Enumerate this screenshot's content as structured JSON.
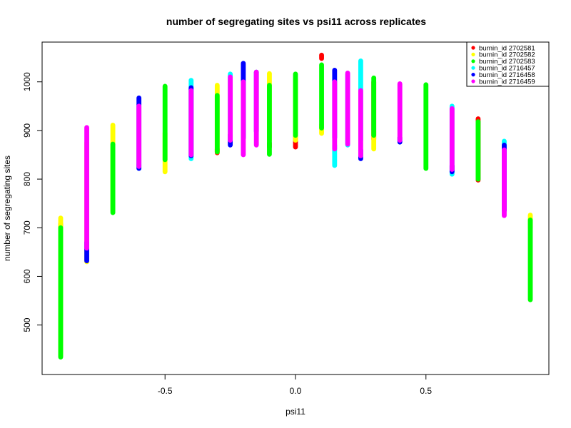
{
  "chart_data": {
    "type": "scatter",
    "title": "number of segregating sites vs psi11 across replicates",
    "xlabel": "psi11",
    "ylabel": "number of segregating sites",
    "xlim": [
      -0.9,
      0.9
    ],
    "ylim": [
      410,
      1070
    ],
    "x_ticks": [
      -0.5,
      0.0,
      0.5
    ],
    "x_tick_labels": [
      "-0.5",
      "0.0",
      "0.5"
    ],
    "y_ticks": [
      500,
      600,
      700,
      800,
      900,
      1000
    ],
    "y_tick_labels": [
      "500",
      "600",
      "700",
      "800",
      "900",
      "1000"
    ],
    "grid": false,
    "legend_position": "top-right",
    "series": [
      {
        "name": "burnin_id 2702581",
        "color": "#ff0000"
      },
      {
        "name": "burnin_id 2702582",
        "color": "#ffff00"
      },
      {
        "name": "burnin_id 2702583",
        "color": "#00ff00"
      },
      {
        "name": "burnin_id 2716457",
        "color": "#00ffff"
      },
      {
        "name": "burnin_id 2716458",
        "color": "#0000ff"
      },
      {
        "name": "burnin_id 2716459",
        "color": "#ff00ff"
      }
    ],
    "ranges": [
      {
        "x": -0.9,
        "segments": [
          [
            0,
            700,
            708
          ],
          [
            1,
            436,
            720
          ],
          [
            2,
            434,
            700
          ]
        ]
      },
      {
        "x": -0.8,
        "segments": [
          [
            1,
            630,
            875
          ],
          [
            4,
            632,
            670
          ],
          [
            5,
            658,
            906
          ]
        ]
      },
      {
        "x": -0.7,
        "segments": [
          [
            1,
            735,
            911
          ],
          [
            2,
            731,
            872
          ]
        ]
      },
      {
        "x": -0.6,
        "segments": [
          [
            3,
            822,
            830
          ],
          [
            4,
            822,
            967
          ],
          [
            5,
            826,
            950
          ]
        ]
      },
      {
        "x": -0.5,
        "segments": [
          [
            1,
            815,
            895
          ],
          [
            2,
            840,
            991
          ]
        ]
      },
      {
        "x": -0.4,
        "segments": [
          [
            3,
            842,
            1003
          ],
          [
            4,
            848,
            988
          ],
          [
            5,
            850,
            982
          ]
        ]
      },
      {
        "x": -0.3,
        "segments": [
          [
            0,
            854,
            862
          ],
          [
            1,
            856,
            993
          ],
          [
            2,
            856,
            972
          ]
        ]
      },
      {
        "x": -0.25,
        "segments": [
          [
            3,
            895,
            1016
          ],
          [
            4,
            870,
            892
          ],
          [
            5,
            880,
            1010
          ]
        ]
      },
      {
        "x": -0.2,
        "segments": [
          [
            3,
            888,
            1000
          ],
          [
            4,
            884,
            1038
          ],
          [
            5,
            850,
            1000
          ]
        ]
      },
      {
        "x": -0.15,
        "segments": [
          [
            4,
            898,
            1020
          ],
          [
            5,
            870,
            1020
          ]
        ]
      },
      {
        "x": -0.1,
        "segments": [
          [
            0,
            866,
            874
          ],
          [
            1,
            880,
            1017
          ],
          [
            2,
            851,
            993
          ]
        ]
      },
      {
        "x": 0.0,
        "segments": [
          [
            0,
            866,
            890
          ],
          [
            1,
            880,
            1005
          ],
          [
            2,
            890,
            1016
          ]
        ]
      },
      {
        "x": 0.1,
        "segments": [
          [
            0,
            1048,
            1055
          ],
          [
            1,
            894,
            912
          ],
          [
            2,
            905,
            1035
          ]
        ]
      },
      {
        "x": 0.15,
        "segments": [
          [
            3,
            828,
            870
          ],
          [
            4,
            885,
            1024
          ],
          [
            5,
            862,
            1000
          ]
        ]
      },
      {
        "x": 0.2,
        "segments": [
          [
            3,
            870,
            1015
          ],
          [
            5,
            872,
            1018
          ]
        ]
      },
      {
        "x": 0.25,
        "segments": [
          [
            3,
            880,
            1043
          ],
          [
            4,
            842,
            860
          ],
          [
            5,
            848,
            982
          ]
        ]
      },
      {
        "x": 0.3,
        "segments": [
          [
            0,
            882,
            1000
          ],
          [
            1,
            862,
            898
          ],
          [
            2,
            890,
            1008
          ]
        ]
      },
      {
        "x": 0.4,
        "segments": [
          [
            4,
            876,
            886
          ],
          [
            5,
            880,
            996
          ]
        ]
      },
      {
        "x": 0.5,
        "segments": [
          [
            2,
            822,
            994
          ]
        ]
      },
      {
        "x": 0.6,
        "segments": [
          [
            3,
            810,
            950
          ],
          [
            4,
            815,
            828
          ],
          [
            5,
            820,
            945
          ]
        ]
      },
      {
        "x": 0.7,
        "segments": [
          [
            0,
            798,
            924
          ],
          [
            2,
            800,
            918
          ]
        ]
      },
      {
        "x": 0.8,
        "segments": [
          [
            3,
            860,
            878
          ],
          [
            4,
            735,
            870
          ],
          [
            5,
            725,
            860
          ]
        ]
      },
      {
        "x": 0.9,
        "segments": [
          [
            1,
            700,
            726
          ],
          [
            2,
            552,
            716
          ]
        ]
      }
    ]
  }
}
